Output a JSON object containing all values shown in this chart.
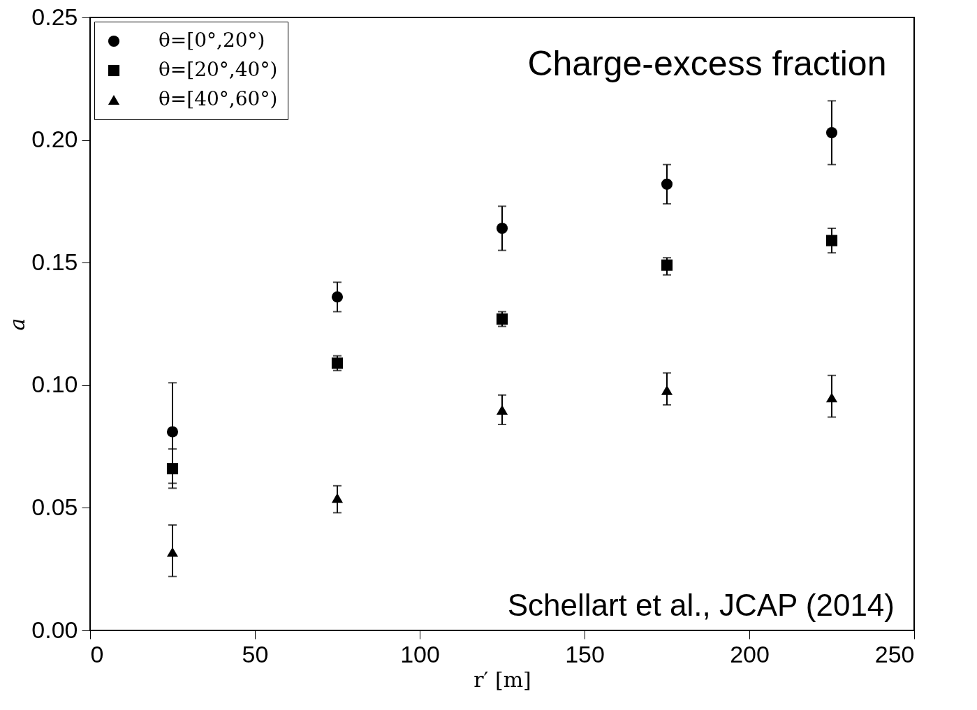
{
  "chart_data": {
    "type": "scatter",
    "title": "Charge-excess fraction",
    "xlabel": "r′ [m]",
    "ylabel": "a",
    "annotations": [
      "Schellart et al., JCAP (2014)"
    ],
    "x": [
      25,
      75,
      125,
      175,
      225
    ],
    "series": [
      {
        "name": "θ=[0°,20°)",
        "color": "#000000",
        "marker": "circle",
        "values": [
          0.081,
          0.136,
          0.164,
          0.182,
          0.203
        ],
        "errors": [
          [
            0.06,
            0.101
          ],
          [
            0.13,
            0.142
          ],
          [
            0.155,
            0.173
          ],
          [
            0.174,
            0.19
          ],
          [
            0.19,
            0.216
          ]
        ]
      },
      {
        "name": "θ=[20°,40°)",
        "color": "#000000",
        "marker": "square",
        "values": [
          0.066,
          0.109,
          0.127,
          0.149,
          0.159
        ],
        "errors": [
          [
            0.058,
            0.074
          ],
          [
            0.106,
            0.112
          ],
          [
            0.124,
            0.13
          ],
          [
            0.145,
            0.152
          ],
          [
            0.154,
            0.164
          ]
        ]
      },
      {
        "name": "θ=[40°,60°)",
        "color": "#000000",
        "marker": "triangle",
        "values": [
          0.032,
          0.054,
          0.09,
          0.098,
          0.095
        ],
        "errors": [
          [
            0.022,
            0.043
          ],
          [
            0.048,
            0.059
          ],
          [
            0.084,
            0.096
          ],
          [
            0.092,
            0.105
          ],
          [
            0.087,
            0.104
          ]
        ]
      }
    ],
    "xlim": [
      0,
      250
    ],
    "xticks": [
      0,
      50,
      100,
      150,
      200,
      250
    ],
    "ylim": [
      0,
      0.25
    ],
    "yticks": [
      {
        "value": 0,
        "label": "0.00"
      },
      {
        "value": 0.05,
        "label": "0.05"
      },
      {
        "value": 0.1,
        "label": "0.10"
      },
      {
        "value": 0.15,
        "label": "0.15"
      },
      {
        "value": 0.2,
        "label": "0.20"
      },
      {
        "value": 0.25,
        "label": "0.25"
      }
    ],
    "legend": "top left"
  }
}
